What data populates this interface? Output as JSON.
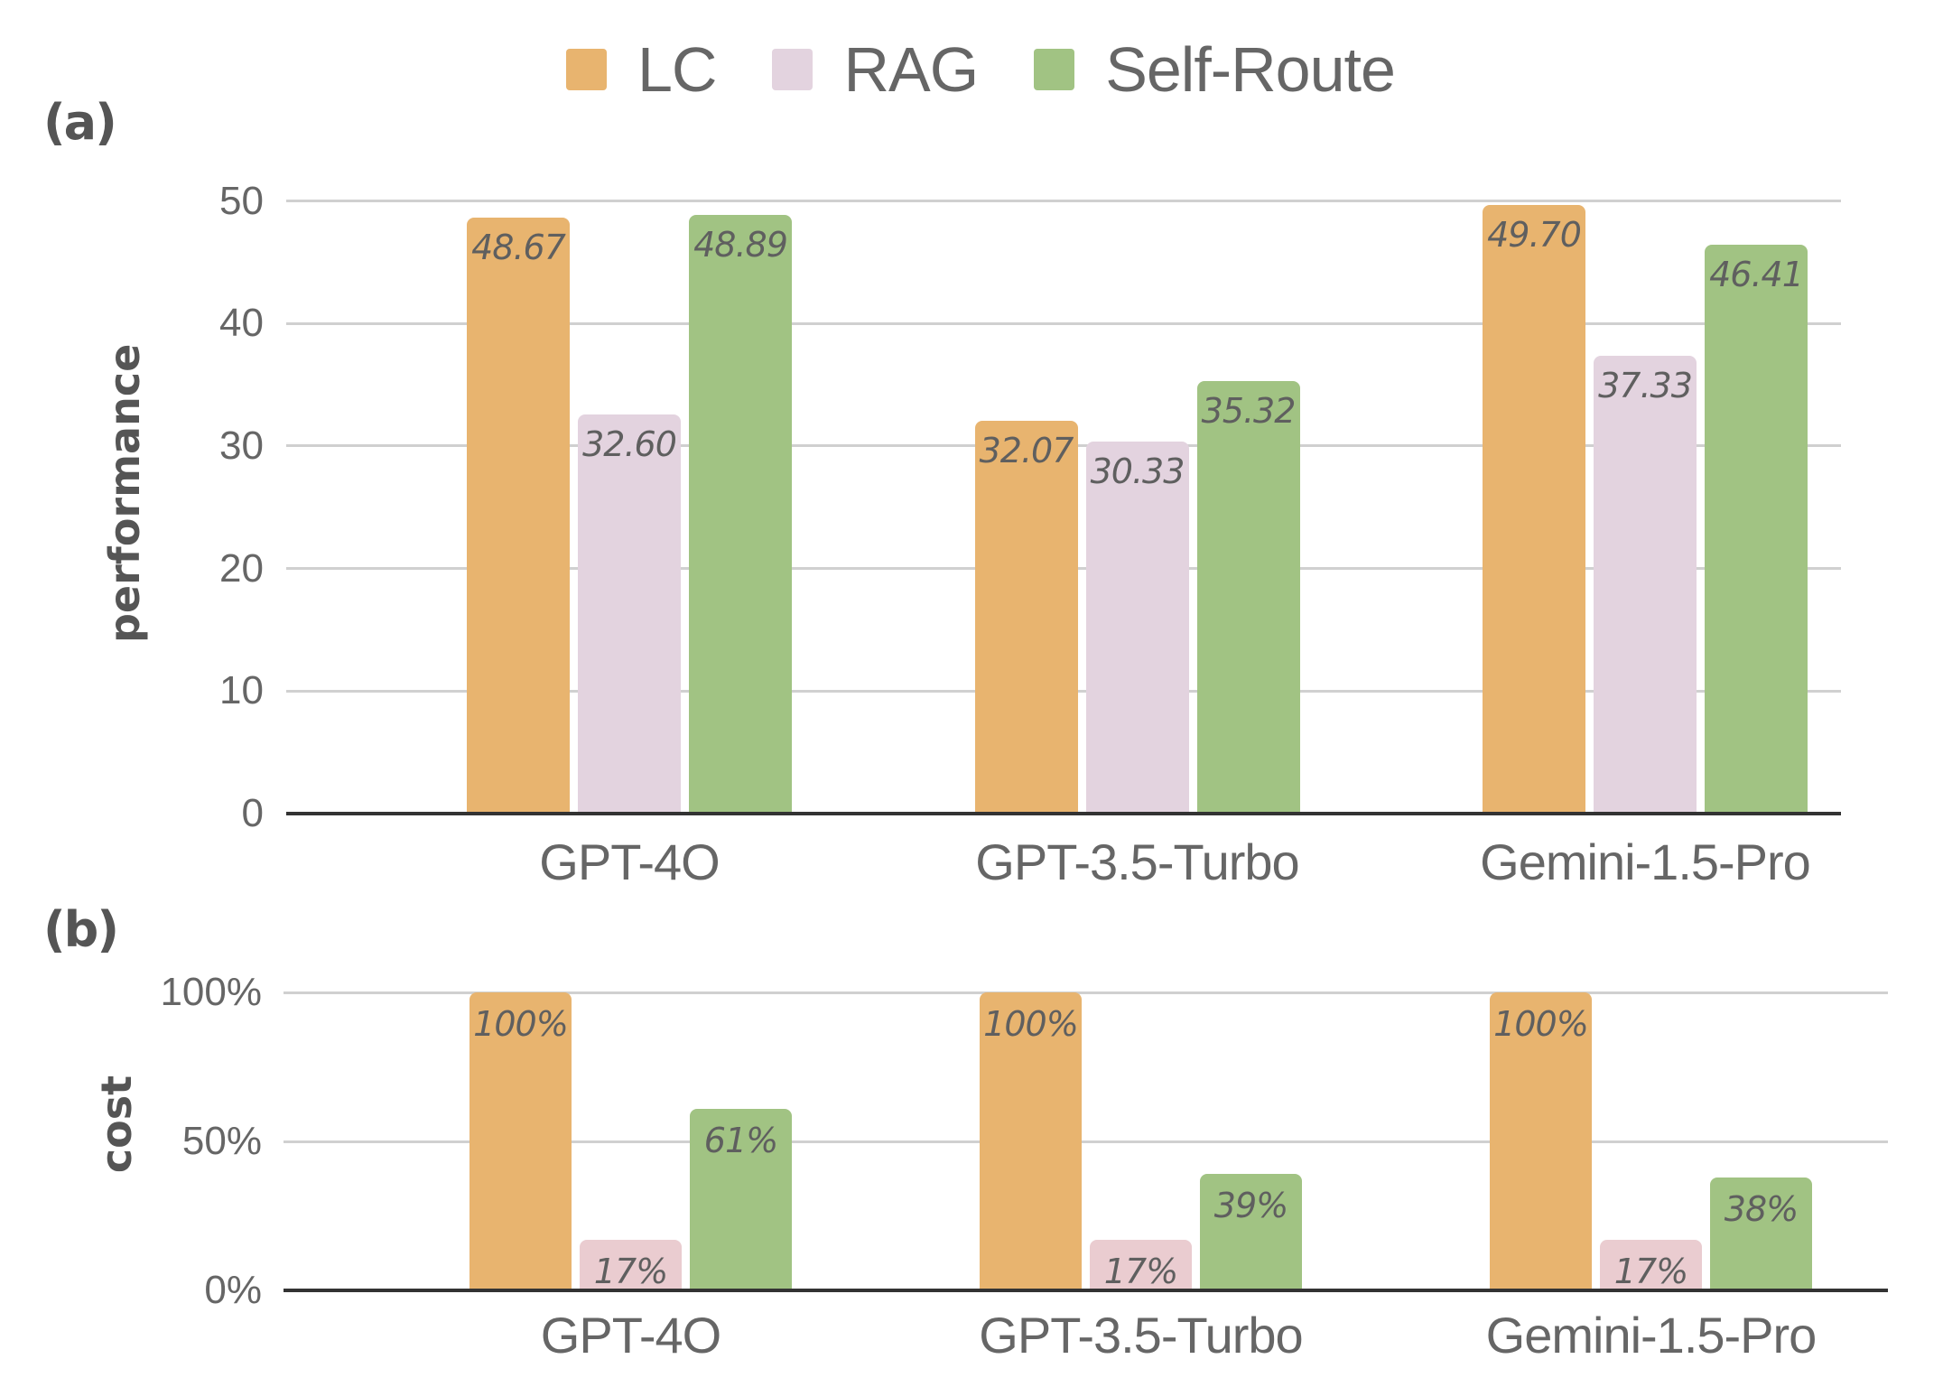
{
  "legend": [
    {
      "label": "LC",
      "color": "#e8b46f"
    },
    {
      "label": "RAG",
      "color": "#e3d3df"
    },
    {
      "label": "Self-Route",
      "color": "#a1c383"
    }
  ],
  "panels": {
    "a": {
      "tag": "(a)",
      "ylabel": "performance",
      "ticks": [
        "0",
        "10",
        "20",
        "30",
        "40",
        "50"
      ]
    },
    "b": {
      "tag": "(b)",
      "ylabel": "cost",
      "ticks": [
        "0%",
        "50%",
        "100%"
      ]
    }
  },
  "categories": [
    "GPT-4O",
    "GPT-3.5-Turbo",
    "Gemini-1.5-Pro"
  ],
  "chart_data": [
    {
      "type": "bar",
      "title": "(a)",
      "xlabel": "",
      "ylabel": "performance",
      "ylim": [
        0,
        50
      ],
      "yticks": [
        0,
        10,
        20,
        30,
        40,
        50
      ],
      "grid": true,
      "legend_position": "top",
      "categories": [
        "GPT-4O",
        "GPT-3.5-Turbo",
        "Gemini-1.5-Pro"
      ],
      "series": [
        {
          "name": "LC",
          "color": "#e8b46f",
          "values": [
            48.67,
            32.07,
            49.7
          ],
          "labels": [
            "48.67",
            "32.07",
            "49.70"
          ]
        },
        {
          "name": "RAG",
          "color": "#e3d3df",
          "values": [
            32.6,
            30.33,
            37.33
          ],
          "labels": [
            "32.60",
            "30.33",
            "37.33"
          ]
        },
        {
          "name": "Self-Route",
          "color": "#a1c383",
          "values": [
            48.89,
            35.32,
            46.41
          ],
          "labels": [
            "48.89",
            "35.32",
            "46.41"
          ]
        }
      ]
    },
    {
      "type": "bar",
      "title": "(b)",
      "xlabel": "",
      "ylabel": "cost",
      "ylim": [
        0,
        100
      ],
      "yticks": [
        "0%",
        "50%",
        "100%"
      ],
      "grid": true,
      "legend_position": "top",
      "categories": [
        "GPT-4O",
        "GPT-3.5-Turbo",
        "Gemini-1.5-Pro"
      ],
      "series": [
        {
          "name": "LC",
          "color": "#e8b46f",
          "values": [
            100,
            100,
            100
          ],
          "labels": [
            "100%",
            "100%",
            "100%"
          ]
        },
        {
          "name": "RAG",
          "color": "#eaccd0",
          "values": [
            17,
            17,
            17
          ],
          "labels": [
            "17%",
            "17%",
            "17%"
          ]
        },
        {
          "name": "Self-Route",
          "color": "#a1c383",
          "values": [
            61,
            39,
            38
          ],
          "labels": [
            "61%",
            "39%",
            "38%"
          ]
        }
      ]
    }
  ]
}
